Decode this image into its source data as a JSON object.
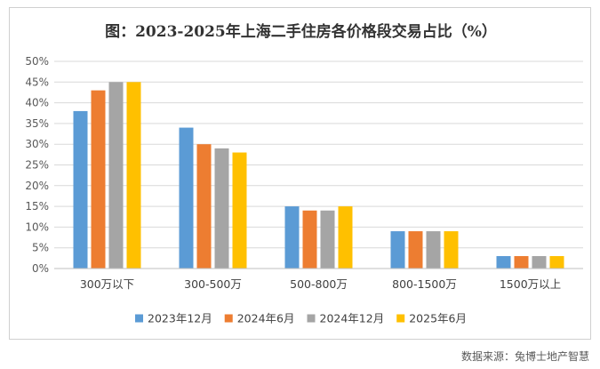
{
  "chart_data": {
    "type": "bar",
    "title": "图：2023-2025年上海二手住房各价格段交易占比（%）",
    "categories": [
      "300万以下",
      "300-500万",
      "500-800万",
      "800-1500万",
      "1500万以上"
    ],
    "series": [
      {
        "name": "2023年12月",
        "color": "#5B9BD5",
        "values": [
          38,
          34,
          15,
          9,
          3
        ]
      },
      {
        "name": "2024年6月",
        "color": "#ED7D31",
        "values": [
          43,
          30,
          14,
          9,
          3
        ]
      },
      {
        "name": "2024年12月",
        "color": "#A5A5A5",
        "values": [
          45,
          29,
          14,
          9,
          3
        ]
      },
      {
        "name": "2025年6月",
        "color": "#FFC000",
        "values": [
          45,
          28,
          15,
          9,
          3
        ]
      }
    ],
    "y_ticks": [
      "0%",
      "5%",
      "10%",
      "15%",
      "20%",
      "25%",
      "30%",
      "35%",
      "40%",
      "45%",
      "50%"
    ],
    "ylim": [
      0,
      50
    ],
    "grid": true,
    "legend": "bottom"
  },
  "source_note": "数据来源：兔博士地产智慧"
}
